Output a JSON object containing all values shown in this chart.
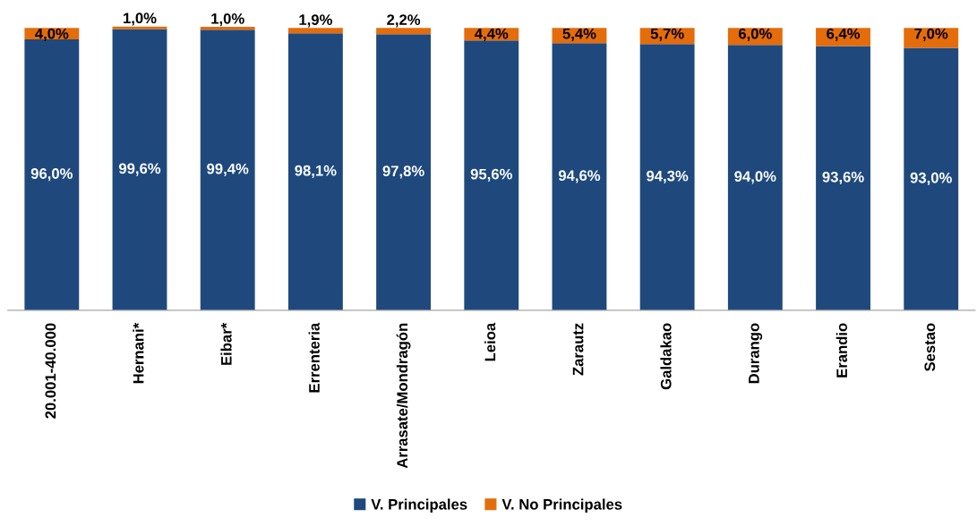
{
  "chart_data": {
    "type": "bar",
    "stacked": true,
    "categories": [
      "20.001-40.000",
      "Hernani*",
      "Eibar*",
      "Errenteria",
      "Arrasate/Mondragón",
      "Leioa",
      "Zarautz",
      "Galdakao",
      "Durango",
      "Erandio",
      "Sestao"
    ],
    "series": [
      {
        "name": "V. Principales",
        "color": "#1f497d",
        "values": [
          96.0,
          99.6,
          99.4,
          98.1,
          97.8,
          95.6,
          94.6,
          94.3,
          94.0,
          93.6,
          93.0
        ],
        "value_labels": [
          "96,0%",
          "99,6%",
          "99,4%",
          "98,1%",
          "97,8%",
          "95,6%",
          "94,6%",
          "94,3%",
          "94,0%",
          "93,6%",
          "93,0%"
        ]
      },
      {
        "name": "V. No Principales",
        "color": "#e46c0a",
        "values": [
          4.0,
          1.0,
          1.0,
          1.9,
          2.2,
          4.4,
          5.4,
          5.7,
          6.0,
          6.4,
          7.0
        ],
        "value_labels": [
          "4,0%",
          "1,0%",
          "1,0%",
          "1,9%",
          "2,2%",
          "4,4%",
          "5,4%",
          "5,7%",
          "6,0%",
          "6,4%",
          "7,0%"
        ]
      }
    ],
    "legend": "bottom",
    "grid": false
  }
}
